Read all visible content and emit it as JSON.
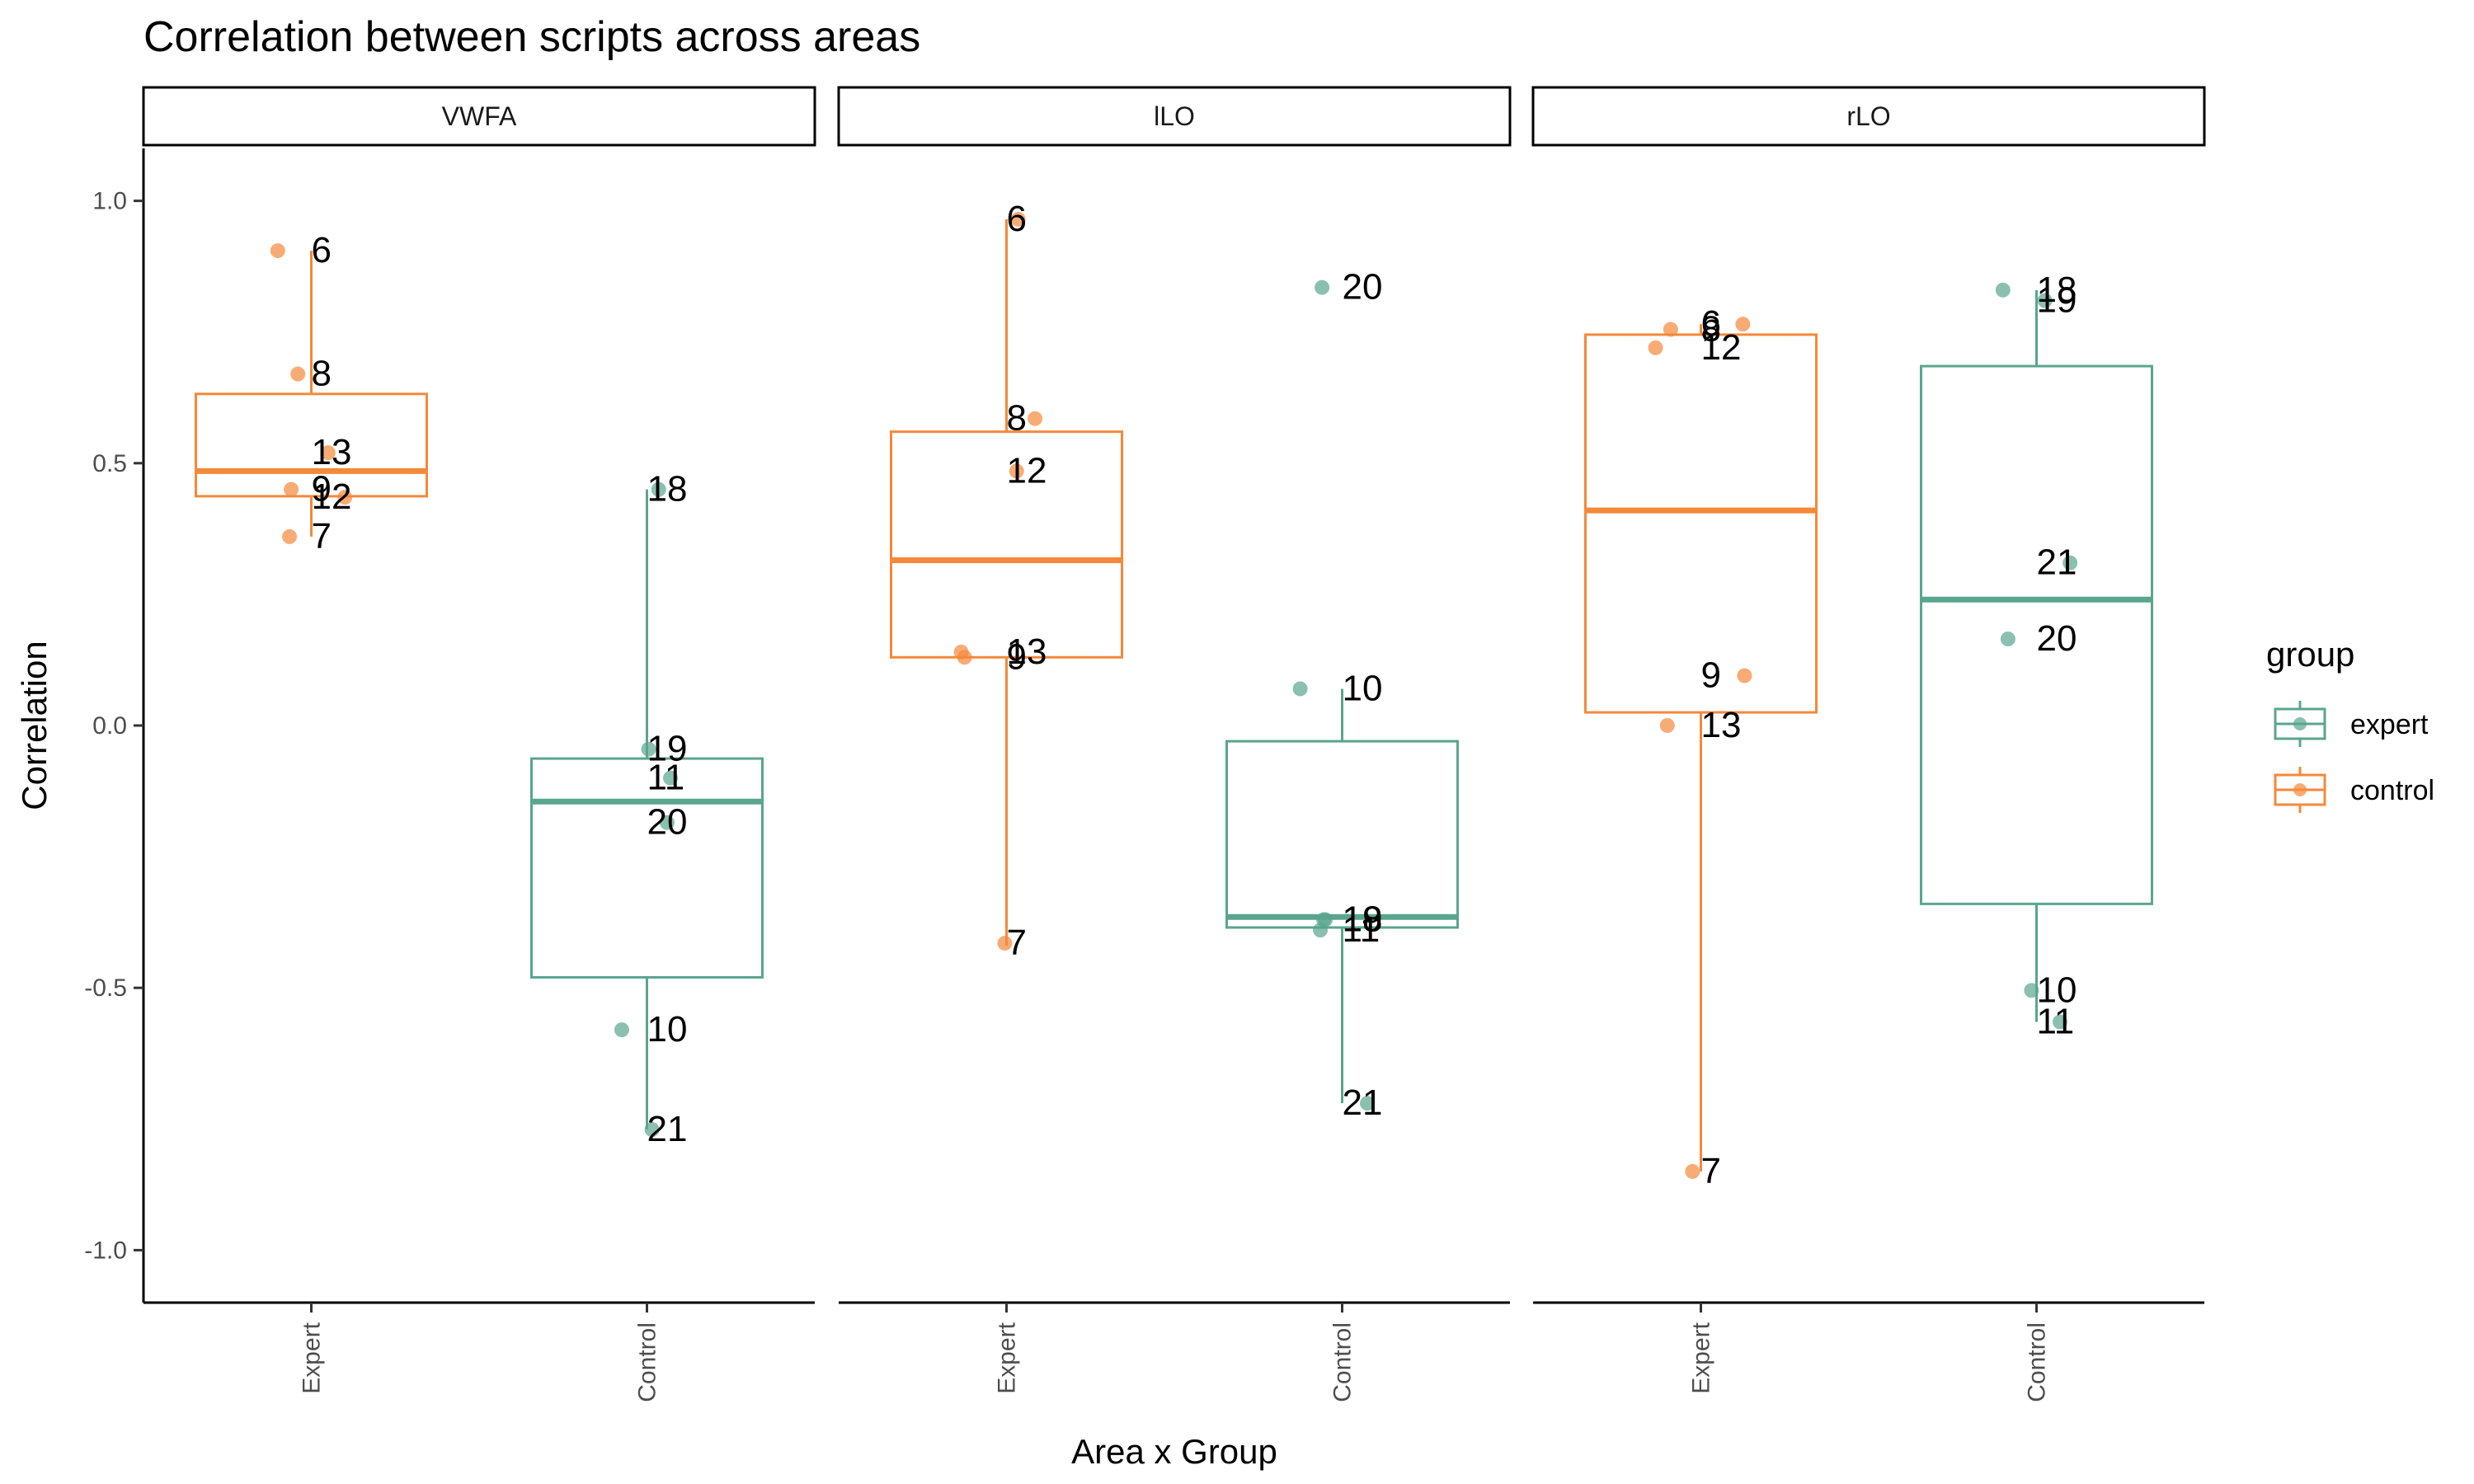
{
  "chart_data": {
    "type": "boxplot",
    "title": "Correlation between scripts across areas",
    "xlabel": "Area x Group",
    "ylabel": "Correlation",
    "ylim": [
      -1.1,
      1.1
    ],
    "yticks": [
      1.0,
      0.5,
      0.0,
      -0.5,
      -1.0
    ],
    "ytick_labels": [
      "1.0",
      "0.5",
      "0.0",
      "-0.5",
      "-1.0"
    ],
    "grid": false,
    "legend": {
      "title": "group",
      "position": "right",
      "entries": [
        {
          "name": "expert",
          "color": "#5aa58e"
        },
        {
          "name": "control",
          "color": "#f5893a"
        }
      ]
    },
    "colors": {
      "expert": "#5aa58e",
      "control": "#f5893a"
    },
    "facets": [
      {
        "label": "VWFA",
        "categories": [
          {
            "label": "Expert",
            "color_group": "control",
            "box": {
              "min": 0.36,
              "q1": 0.437,
              "median": 0.485,
              "q3": 0.632,
              "max": 0.905
            },
            "points": [
              {
                "label": "6",
                "y": 0.905,
                "jitter": -0.2
              },
              {
                "label": "8",
                "y": 0.67,
                "jitter": -0.08
              },
              {
                "label": "13",
                "y": 0.52,
                "jitter": 0.1
              },
              {
                "label": "9",
                "y": 0.45,
                "jitter": -0.12
              },
              {
                "label": "12",
                "y": 0.435,
                "jitter": 0.2
              },
              {
                "label": "7",
                "y": 0.36,
                "jitter": -0.13
              }
            ]
          },
          {
            "label": "Control",
            "color_group": "expert",
            "box": {
              "min": -0.77,
              "q1": -0.48,
              "median": -0.145,
              "q3": -0.063,
              "max": 0.45
            },
            "points": [
              {
                "label": "18",
                "y": 0.45,
                "jitter": 0.07
              },
              {
                "label": "19",
                "y": -0.045,
                "jitter": 0.01
              },
              {
                "label": "11",
                "y": -0.1,
                "jitter": 0.14
              },
              {
                "label": "20",
                "y": -0.185,
                "jitter": 0.12
              },
              {
                "label": "10",
                "y": -0.58,
                "jitter": -0.15
              },
              {
                "label": "21",
                "y": -0.77,
                "jitter": 0.03
              }
            ]
          }
        ]
      },
      {
        "label": "lLO",
        "categories": [
          {
            "label": "Expert",
            "color_group": "control",
            "box": {
              "min": -0.42,
              "q1": 0.13,
              "median": 0.315,
              "q3": 0.56,
              "max": 0.965
            },
            "points": [
              {
                "label": "6",
                "y": 0.965,
                "jitter": 0.07
              },
              {
                "label": "8",
                "y": 0.585,
                "jitter": 0.17
              },
              {
                "label": "12",
                "y": 0.485,
                "jitter": 0.06
              },
              {
                "label": "13",
                "y": 0.14,
                "jitter": -0.27
              },
              {
                "label": "9",
                "y": 0.13,
                "jitter": -0.25
              },
              {
                "label": "7",
                "y": -0.415,
                "jitter": -0.01
              }
            ]
          },
          {
            "label": "Control",
            "color_group": "expert",
            "box": {
              "min": -0.72,
              "q1": -0.385,
              "median": -0.365,
              "q3": -0.03,
              "max": 0.07
            },
            "points": [
              {
                "label": "20",
                "y": 0.835,
                "jitter": -0.12
              },
              {
                "label": "10",
                "y": 0.07,
                "jitter": -0.25
              },
              {
                "label": "18",
                "y": -0.37,
                "jitter": -0.11
              },
              {
                "label": "19",
                "y": -0.37,
                "jitter": -0.1
              },
              {
                "label": "11",
                "y": -0.39,
                "jitter": -0.13
              },
              {
                "label": "21",
                "y": -0.72,
                "jitter": 0.15
              }
            ]
          }
        ]
      },
      {
        "label": "rLO",
        "categories": [
          {
            "label": "Expert",
            "color_group": "control",
            "box": {
              "min": -0.85,
              "q1": 0.025,
              "median": 0.41,
              "q3": 0.745,
              "max": 0.765
            },
            "points": [
              {
                "label": "6",
                "y": 0.765,
                "jitter": 0.25
              },
              {
                "label": "8",
                "y": 0.755,
                "jitter": -0.18
              },
              {
                "label": "12",
                "y": 0.72,
                "jitter": -0.27
              },
              {
                "label": "9",
                "y": 0.095,
                "jitter": 0.26
              },
              {
                "label": "13",
                "y": 0.0,
                "jitter": -0.2
              },
              {
                "label": "7",
                "y": -0.85,
                "jitter": -0.05
              }
            ]
          },
          {
            "label": "Control",
            "color_group": "expert",
            "box": {
              "min": -0.565,
              "q1": -0.34,
              "median": 0.24,
              "q3": 0.685,
              "max": 0.83
            },
            "points": [
              {
                "label": "18",
                "y": 0.83,
                "jitter": -0.2
              },
              {
                "label": "19",
                "y": 0.81,
                "jitter": 0.05
              },
              {
                "label": "21",
                "y": 0.31,
                "jitter": 0.2
              },
              {
                "label": "20",
                "y": 0.165,
                "jitter": -0.17
              },
              {
                "label": "10",
                "y": -0.505,
                "jitter": -0.03
              },
              {
                "label": "11",
                "y": -0.565,
                "jitter": 0.14
              }
            ]
          }
        ]
      }
    ]
  }
}
